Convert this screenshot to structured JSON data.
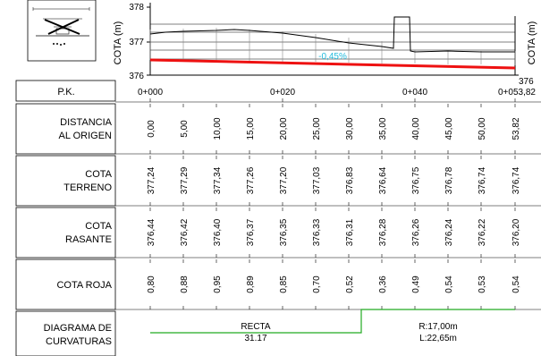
{
  "inset": {
    "caption": "",
    "note": ""
  },
  "profile": {
    "left_axis_label": "COTA (m)",
    "right_axis_label": "COTA (m)",
    "y_ticks_left": [
      "378",
      "377",
      "376"
    ],
    "y_tick_right": "376",
    "slope_label": "-0,45%",
    "colors": {
      "terrain": "#000000",
      "grade": "#ee1111",
      "slope_text": "#22bbdd",
      "curve": "#22aa22"
    }
  },
  "rows": {
    "pk": {
      "label": "P.K.",
      "values": [
        "0+000",
        "0+020",
        "0+040",
        "0+053,82"
      ]
    },
    "distancia": {
      "label_1": "DISTANCIA",
      "label_2": "AL ORIGEN",
      "values": [
        "0,00",
        "5,00",
        "10,00",
        "15,00",
        "20,00",
        "25,00",
        "30,00",
        "35,00",
        "40,00",
        "45,00",
        "50,00",
        "53,82"
      ]
    },
    "terreno": {
      "label_1": "COTA",
      "label_2": "TERRENO",
      "values": [
        "377,24",
        "377,29",
        "377,34",
        "377,26",
        "377,20",
        "377,03",
        "376,83",
        "376,64",
        "376,75",
        "376,78",
        "376,74",
        "376,74"
      ]
    },
    "rasante": {
      "label_1": "COTA",
      "label_2": "RASANTE",
      "values": [
        "376,44",
        "376,42",
        "376,40",
        "376,37",
        "376,35",
        "376,33",
        "376,31",
        "376,28",
        "376,26",
        "376,24",
        "376,22",
        "376,20"
      ]
    },
    "roja": {
      "label": "COTA ROJA",
      "values": [
        "0,80",
        "0,88",
        "0,95",
        "0,89",
        "0,85",
        "0,70",
        "0,52",
        "0,36",
        "0,49",
        "0,54",
        "0,53",
        "0,54"
      ]
    },
    "curvaturas": {
      "label_1": "DIAGRAMA DE",
      "label_2": "CURVATURAS",
      "recta_label": "RECTA",
      "recta_value": "31.17",
      "curve_radius": "R:17,00m",
      "curve_length": "L:22,65m"
    }
  }
}
